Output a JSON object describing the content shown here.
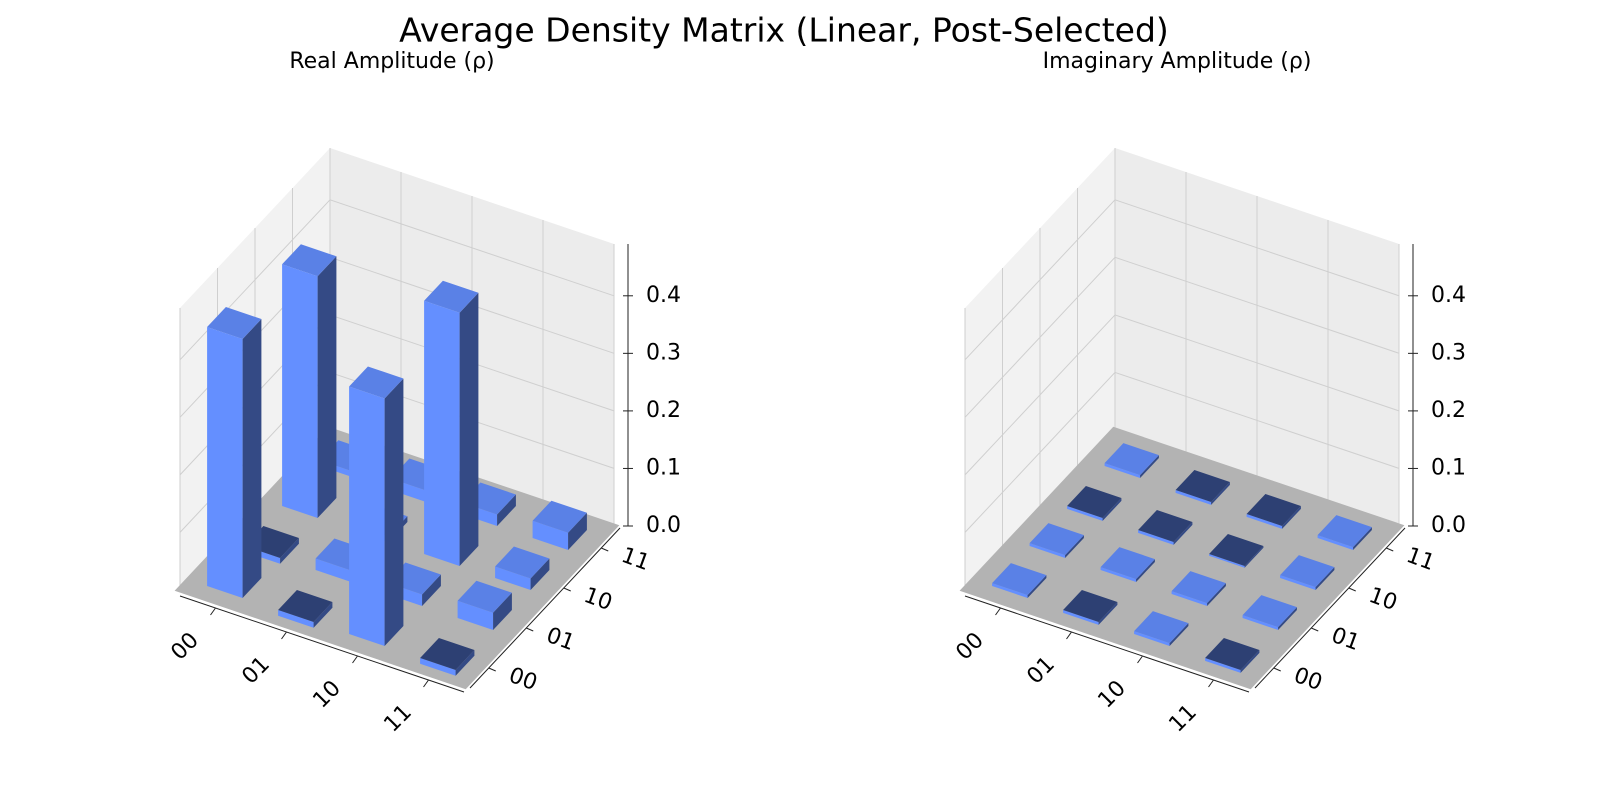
{
  "title": "Average Density Matrix (Linear, Post-Selected)",
  "chart_data": [
    {
      "type": "bar3d",
      "title": "Real Amplitude (ρ)",
      "x_categories": [
        "00",
        "01",
        "10",
        "11"
      ],
      "y_categories": [
        "00",
        "01",
        "10",
        "11"
      ],
      "values": [
        [
          0.45,
          -0.01,
          0.42,
          0.01
        ],
        [
          -0.01,
          0.02,
          0.01,
          0.02
        ],
        [
          0.43,
          0.02,
          0.44,
          0.02
        ],
        [
          -0.01,
          0.03,
          0.02,
          0.03
        ]
      ],
      "color": "#648fff",
      "zlim": [
        0,
        0.49
      ],
      "zticks": [
        {
          "value": 0,
          "label": "0.0"
        },
        {
          "value": 0.1,
          "label": "0.1"
        },
        {
          "value": 0.2,
          "label": "0.2"
        },
        {
          "value": 0.3,
          "label": "0.3"
        },
        {
          "value": 0.4,
          "label": "0.4"
        }
      ],
      "grid": true
    },
    {
      "type": "bar3d",
      "title": "Imaginary Amplitude (ρ)",
      "x_categories": [
        "00",
        "01",
        "10",
        "11"
      ],
      "y_categories": [
        "00",
        "01",
        "10",
        "11"
      ],
      "values": [
        [
          0.005,
          0.005,
          -0.005,
          0.005
        ],
        [
          -0.005,
          0.005,
          -0.005,
          -0.005
        ],
        [
          0.005,
          0.005,
          -0.003,
          -0.005
        ],
        [
          -0.005,
          0.005,
          0.005,
          0.005
        ]
      ],
      "color": "#648fff",
      "zlim": [
        0,
        0.49
      ],
      "zticks": [
        {
          "value": 0,
          "label": "0.0"
        },
        {
          "value": 0.1,
          "label": "0.1"
        },
        {
          "value": 0.2,
          "label": "0.2"
        },
        {
          "value": 0.3,
          "label": "0.3"
        },
        {
          "value": 0.4,
          "label": "0.4"
        }
      ],
      "grid": true
    }
  ]
}
